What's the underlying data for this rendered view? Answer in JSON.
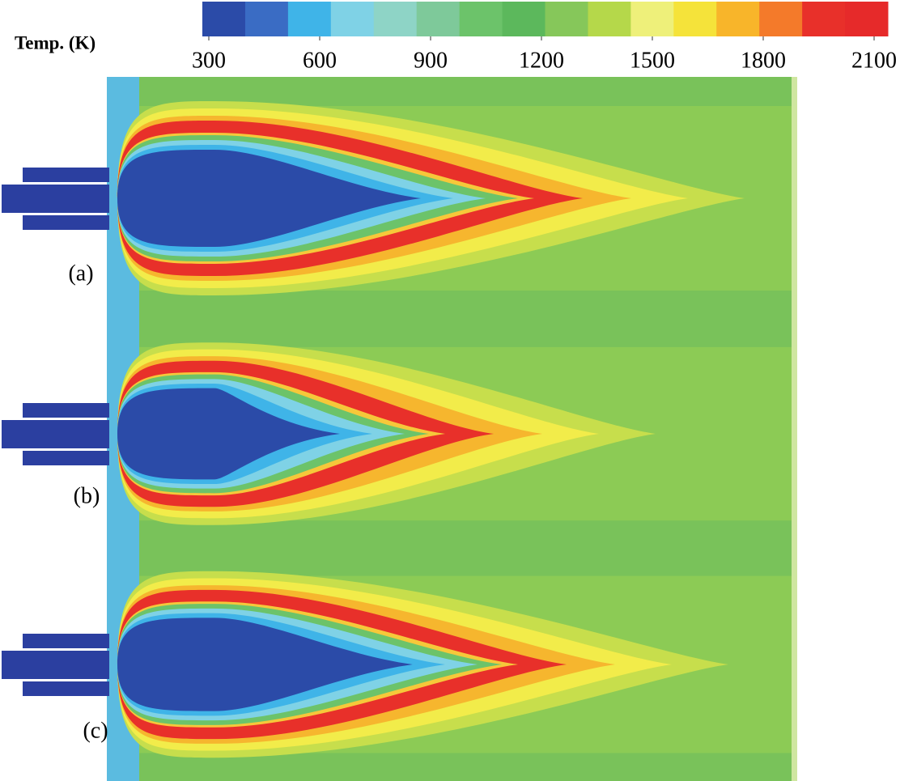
{
  "colorbar": {
    "title": "Temp. (K)",
    "range": [
      300,
      2100
    ],
    "ticks": [
      300,
      600,
      900,
      1200,
      1500,
      1800,
      2100
    ],
    "colors": [
      "#2b4ba8",
      "#3a6cc4",
      "#3fb4e8",
      "#7fd2e6",
      "#8ed4c6",
      "#7ec99a",
      "#6cc36a",
      "#5cb85c",
      "#86c75a",
      "#b5d84a",
      "#eef07a",
      "#f5e33a",
      "#f8b52a",
      "#f47a2a",
      "#e8302a",
      "#e62a2a"
    ]
  },
  "panels": [
    {
      "label": "(a)"
    },
    {
      "label": "(b)"
    },
    {
      "label": "(c)"
    }
  ]
}
